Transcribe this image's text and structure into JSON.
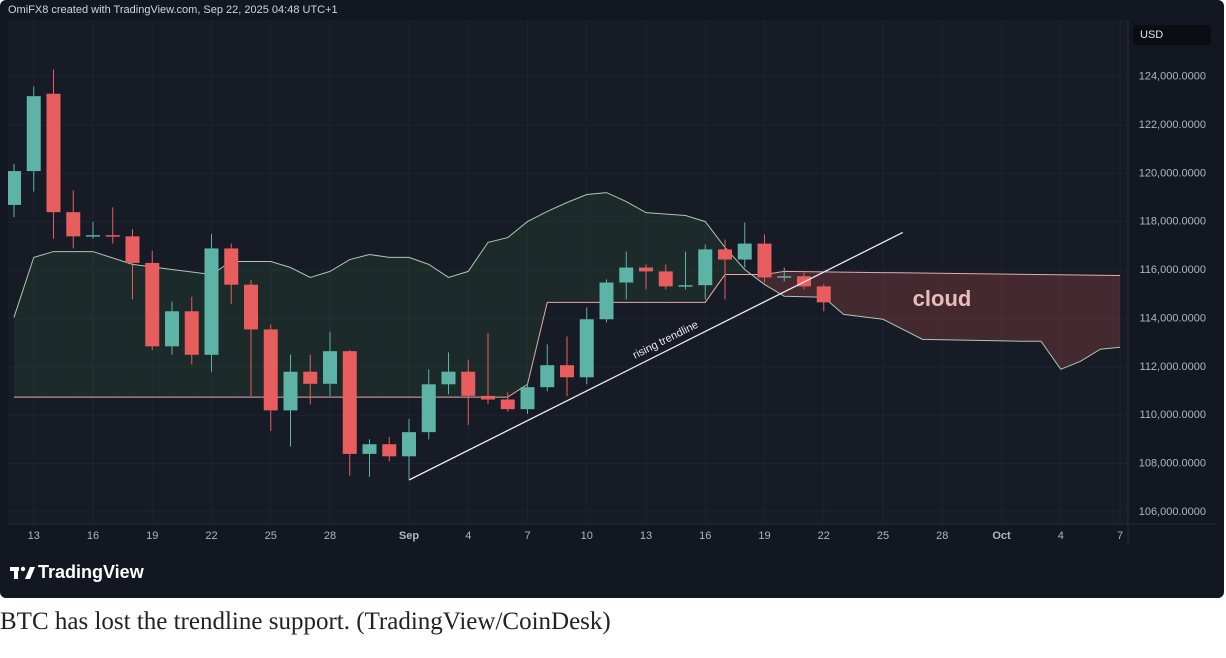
{
  "header": "OmiFX8 created with TradingView.com, Sep 22, 2025 04:48 UTC+1",
  "chart_data": {
    "type": "candlestick",
    "currency": "USD",
    "x": [
      "2025-08-12",
      "2025-08-13",
      "2025-08-14",
      "2025-08-15",
      "2025-08-16",
      "2025-08-17",
      "2025-08-18",
      "2025-08-19",
      "2025-08-20",
      "2025-08-21",
      "2025-08-22",
      "2025-08-23",
      "2025-08-24",
      "2025-08-25",
      "2025-08-26",
      "2025-08-27",
      "2025-08-28",
      "2025-08-29",
      "2025-08-30",
      "2025-08-31",
      "2025-09-01",
      "2025-09-02",
      "2025-09-03",
      "2025-09-04",
      "2025-09-05",
      "2025-09-06",
      "2025-09-07",
      "2025-09-08",
      "2025-09-09",
      "2025-09-10",
      "2025-09-11",
      "2025-09-12",
      "2025-09-13",
      "2025-09-14",
      "2025-09-15",
      "2025-09-16",
      "2025-09-17",
      "2025-09-18",
      "2025-09-19",
      "2025-09-20",
      "2025-09-21",
      "2025-09-22"
    ],
    "open": [
      118700,
      120100,
      123300,
      118400,
      117400,
      117450,
      117400,
      116300,
      112850,
      114300,
      112500,
      116900,
      115400,
      113550,
      110200,
      111800,
      111300,
      112650,
      108400,
      108800,
      108300,
      109300,
      111280,
      111800,
      110800,
      110650,
      110250,
      111160,
      112070,
      111570,
      113970,
      115490,
      116110,
      115950,
      115330,
      115380,
      116860,
      116440,
      117100,
      115700,
      115750,
      115330
    ],
    "high": [
      120400,
      123600,
      124300,
      119300,
      118000,
      118600,
      117700,
      116800,
      114700,
      114900,
      117500,
      117100,
      115600,
      113750,
      112500,
      112500,
      113450,
      112700,
      109000,
      109100,
      109850,
      111900,
      112600,
      112300,
      113400,
      110950,
      111350,
      112930,
      113260,
      114460,
      115620,
      116770,
      116240,
      116240,
      116770,
      117060,
      117270,
      117970,
      117480,
      116110,
      115900,
      115410
    ],
    "low": [
      118200,
      119250,
      117300,
      116900,
      117300,
      117100,
      114800,
      112700,
      112500,
      112100,
      111800,
      114600,
      110800,
      109350,
      108700,
      110450,
      110800,
      107500,
      107450,
      108100,
      107350,
      109000,
      110870,
      109600,
      110450,
      110150,
      110050,
      110990,
      110790,
      111280,
      113840,
      114790,
      115200,
      115200,
      115200,
      114790,
      114790,
      116110,
      115490,
      115530,
      115200,
      114300
    ],
    "close": [
      120100,
      123200,
      118400,
      117400,
      117450,
      117400,
      116300,
      112850,
      114300,
      112500,
      116900,
      115400,
      113550,
      110200,
      111800,
      111300,
      112650,
      108400,
      108800,
      108300,
      109300,
      111280,
      111800,
      110800,
      110650,
      110250,
      111160,
      112070,
      111570,
      113970,
      115490,
      116110,
      115950,
      115330,
      115380,
      116860,
      116440,
      117100,
      115700,
      115750,
      115330,
      114670
    ],
    "up_color": "#5cb3a6",
    "down_color": "#e85d5d",
    "lines": [
      {
        "color": "#a9c9b2",
        "x": [
          "2025-08-12",
          "2025-08-13",
          "2025-08-14",
          "2025-08-16",
          "2025-08-18",
          "2025-08-20",
          "2025-08-22",
          "2025-08-23",
          "2025-08-25",
          "2025-08-26",
          "2025-08-27",
          "2025-08-28",
          "2025-08-29",
          "2025-08-30",
          "2025-08-31",
          "2025-09-01",
          "2025-09-02",
          "2025-09-03",
          "2025-09-04",
          "2025-09-05",
          "2025-09-06",
          "2025-09-07",
          "2025-09-08",
          "2025-09-09",
          "2025-09-10",
          "2025-09-11",
          "2025-09-12",
          "2025-09-13",
          "2025-09-15",
          "2025-09-16",
          "2025-09-17",
          "2025-09-18",
          "2025-09-19",
          "2025-09-20",
          "2025-09-22",
          "2025-09-23",
          "2025-09-25",
          "2025-09-27",
          "2025-10-02",
          "2025-10-03",
          "2025-10-04",
          "2025-10-05",
          "2025-10-06",
          "2025-10-07"
        ],
        "values": [
          114050,
          116530,
          116770,
          116770,
          116240,
          116030,
          115820,
          116360,
          116360,
          116110,
          115700,
          115950,
          116440,
          116650,
          116530,
          116530,
          116240,
          115700,
          115950,
          117150,
          117350,
          118010,
          118430,
          118800,
          119130,
          119210,
          118840,
          118380,
          118260,
          118010,
          116940,
          116030,
          115410,
          114920,
          114880,
          114170,
          113970,
          113140,
          113060,
          113060,
          111900,
          112230,
          112730,
          112810
        ]
      },
      {
        "color": "#e6a9a9",
        "x": [
          "2025-08-12",
          "2025-09-06",
          "2025-09-07",
          "2025-09-08",
          "2025-09-16",
          "2025-09-17",
          "2025-09-19",
          "2025-09-20",
          "2025-10-07"
        ],
        "values": [
          110750,
          110750,
          111280,
          114670,
          114670,
          115820,
          115820,
          115950,
          115780
        ]
      }
    ],
    "cloud_colors": [
      "rgba(76,175,80,0.10)",
      "rgba(232,93,93,0.22)"
    ],
    "trendline": {
      "x": [
        "2025-09-01",
        "2025-09-26"
      ],
      "values": [
        107320,
        117560
      ],
      "color": "#e8e8ee",
      "label": "rising trendline"
    },
    "cloud_label": "cloud",
    "xlim": [
      "2025-08-12",
      "2025-10-07"
    ],
    "xticks": [
      {
        "value": "2025-08-13",
        "label": "13"
      },
      {
        "value": "2025-08-16",
        "label": "16"
      },
      {
        "value": "2025-08-19",
        "label": "19"
      },
      {
        "value": "2025-08-22",
        "label": "22"
      },
      {
        "value": "2025-08-25",
        "label": "25"
      },
      {
        "value": "2025-08-28",
        "label": "28"
      },
      {
        "value": "2025-09-01",
        "label": "Sep"
      },
      {
        "value": "2025-09-04",
        "label": "4"
      },
      {
        "value": "2025-09-07",
        "label": "7"
      },
      {
        "value": "2025-09-10",
        "label": "10"
      },
      {
        "value": "2025-09-13",
        "label": "13"
      },
      {
        "value": "2025-09-16",
        "label": "16"
      },
      {
        "value": "2025-09-19",
        "label": "19"
      },
      {
        "value": "2025-09-22",
        "label": "22"
      },
      {
        "value": "2025-09-25",
        "label": "25"
      },
      {
        "value": "2025-09-28",
        "label": "28"
      },
      {
        "value": "2025-10-01",
        "label": "Oct"
      },
      {
        "value": "2025-10-04",
        "label": "4"
      },
      {
        "value": "2025-10-07",
        "label": "7"
      }
    ],
    "ylim": [
      105500,
      126350
    ],
    "yticks": [
      {
        "value": 106000,
        "label": "106,000.0000"
      },
      {
        "value": 108000,
        "label": "108,000.0000"
      },
      {
        "value": 110000,
        "label": "110,000.0000"
      },
      {
        "value": 112000,
        "label": "112,000.0000"
      },
      {
        "value": 114000,
        "label": "114,000.0000"
      },
      {
        "value": 116000,
        "label": "116,000.0000"
      },
      {
        "value": 118000,
        "label": "118,000.0000"
      },
      {
        "value": 120000,
        "label": "120,000.0000"
      },
      {
        "value": 122000,
        "label": "122,000.0000"
      },
      {
        "value": 124000,
        "label": "124,000.0000"
      }
    ],
    "grid": true
  },
  "logo": "TradingView",
  "caption": "BTC has lost the trendline support. (TradingView/CoinDesk)"
}
